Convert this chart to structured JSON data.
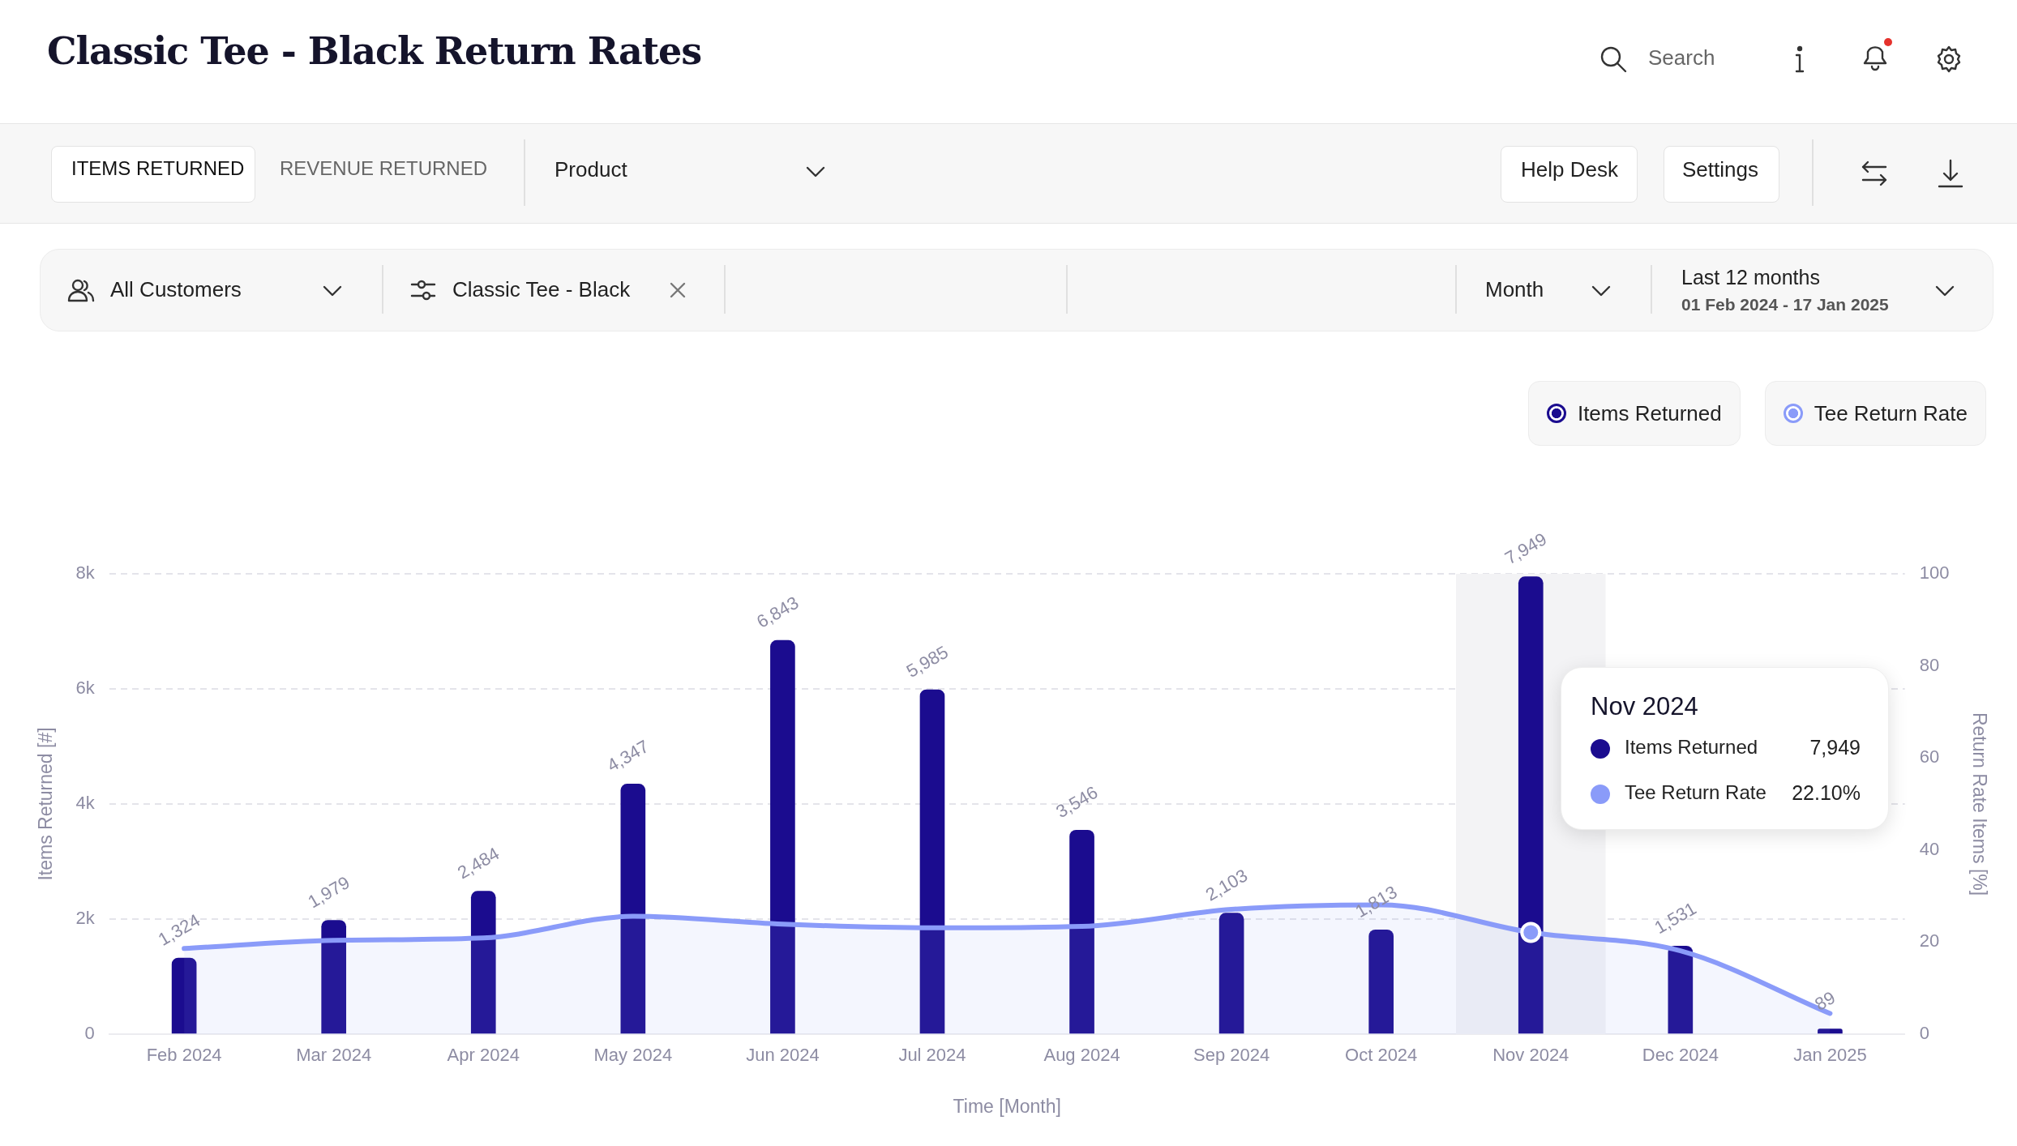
{
  "chart_data": {
    "type": "bar",
    "title": "Classic Tee - Black Return Rates",
    "xlabel": "Time [Month]",
    "ylabel": "Items Returned [#]",
    "y2label": "Return Rate Items [%]",
    "categories": [
      "Feb 2024",
      "Mar 2024",
      "Apr 2024",
      "May 2024",
      "Jun 2024",
      "Jul 2024",
      "Aug 2024",
      "Sep 2024",
      "Oct 2024",
      "Nov 2024",
      "Dec 2024",
      "Jan 2025"
    ],
    "series": [
      {
        "name": "Items Returned",
        "color": "#1b0c8f",
        "values": [
          1324,
          1979,
          2484,
          4347,
          6843,
          5985,
          3546,
          2103,
          1813,
          7949,
          1531,
          89
        ],
        "value_labels": [
          "1,324",
          "1,979",
          "2,484",
          "4,347",
          "6,843",
          "5,985",
          "3,546",
          "2,103",
          "1,813",
          "7,949",
          "1,531",
          "89"
        ]
      },
      {
        "name": "Tee Return Rate",
        "type": "area",
        "axis": "y2",
        "color": "#8a9bf9",
        "values": [
          18.6,
          20.4,
          20.9,
          25.6,
          23.9,
          23.1,
          23.4,
          27.1,
          28.1,
          22.1,
          18.1,
          4.5
        ]
      }
    ],
    "ylim": [
      0,
      8000
    ],
    "yticks": [
      0,
      {
        "value": 2000,
        "label": "2k"
      },
      {
        "value": 4000,
        "label": "4k"
      },
      {
        "value": 6000,
        "label": "6k"
      },
      {
        "value": 8000,
        "label": "8k"
      }
    ],
    "y2lim": [
      0,
      100
    ],
    "y2ticks": [
      0,
      20,
      40,
      60,
      80,
      100
    ],
    "grid": "y",
    "legend": "top right",
    "bands": [
      {
        "axis": "x",
        "from": "Nov 2024",
        "to": "Nov 2024",
        "color": "#f3f3f5"
      }
    ],
    "annotations": [
      "ITEMS RETURNED",
      "REVENUE RETURNED",
      "Product",
      "Help Desk",
      "Settings",
      "Search",
      "All Customers",
      "Classic Tee - Black",
      "Month",
      "Last 12 months",
      "01 Feb 2024 - 17 Jan 2025",
      "Nov 2024",
      "7,949",
      "22.10%"
    ]
  }
}
